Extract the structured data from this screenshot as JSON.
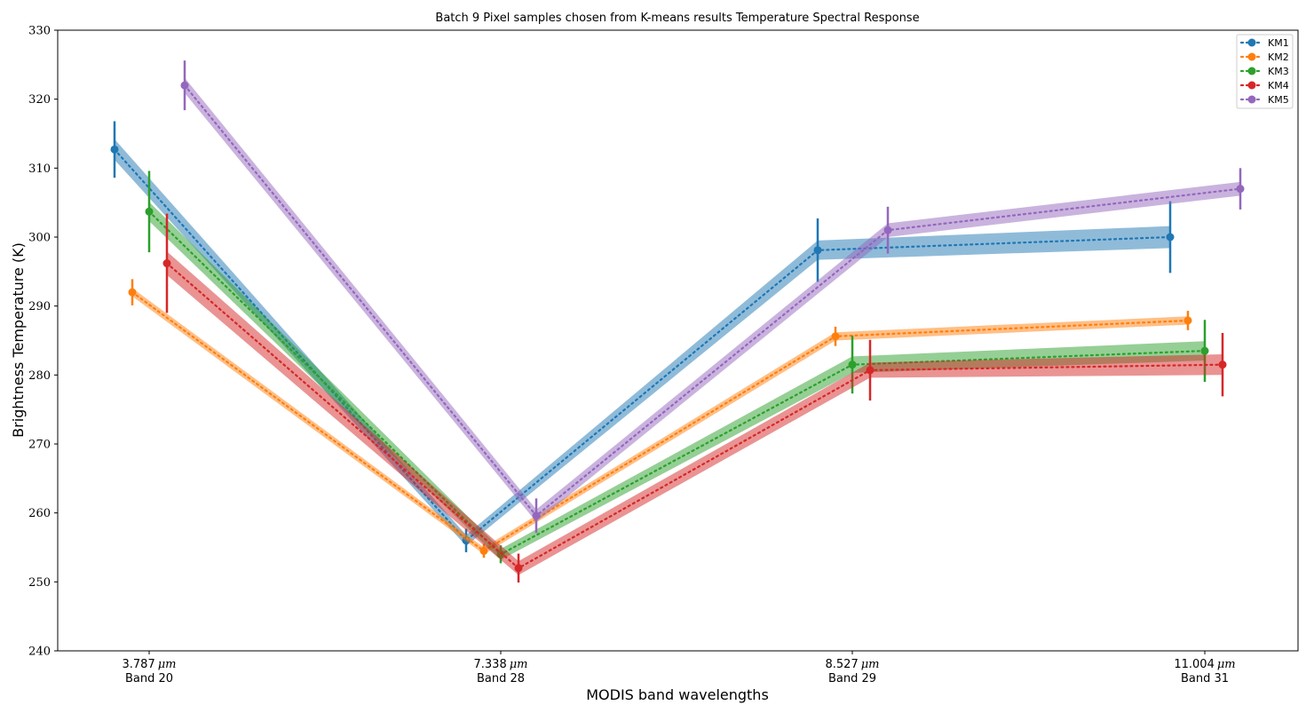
{
  "chart_data": {
    "type": "line",
    "title": "Batch 9 Pixel samples chosen from K-means results Temperature Spectral Response",
    "xlabel": "MODIS band wavelengths",
    "ylabel": "Brightness Temperature (K)",
    "ylim": [
      240,
      330
    ],
    "yticks": [
      240,
      250,
      260,
      270,
      280,
      290,
      300,
      310,
      320,
      330
    ],
    "grid": false,
    "legend_position": "top-right",
    "categories": [
      {
        "value": "3.787",
        "unit": "μm",
        "band": "Band 20"
      },
      {
        "value": "7.338",
        "unit": "μm",
        "band": "Band 28"
      },
      {
        "value": "8.527",
        "unit": "μm",
        "band": "Band 29"
      },
      {
        "value": "11.004",
        "unit": "μm",
        "band": "Band 31"
      }
    ],
    "series": [
      {
        "name": "KM1",
        "color": "#1f77b4",
        "values": [
          312.7,
          256.0,
          298.1,
          300.0
        ],
        "err": [
          4.1,
          1.7,
          4.6,
          5.2
        ],
        "band_half_width": [
          1.5,
          0.8,
          1.4,
          1.6
        ]
      },
      {
        "name": "KM2",
        "color": "#ff7f0e",
        "values": [
          292.0,
          254.5,
          285.6,
          287.9
        ],
        "err": [
          1.9,
          1.0,
          1.4,
          1.4
        ],
        "band_half_width": [
          0.6,
          0.5,
          0.6,
          0.6
        ]
      },
      {
        "name": "KM3",
        "color": "#2ca02c",
        "values": [
          303.7,
          254.0,
          281.5,
          283.5
        ],
        "err": [
          5.9,
          1.3,
          4.2,
          4.5
        ],
        "band_half_width": [
          1.4,
          0.8,
          1.2,
          1.4
        ]
      },
      {
        "name": "KM4",
        "color": "#d62728",
        "values": [
          296.2,
          252.0,
          280.7,
          281.5
        ],
        "err": [
          7.2,
          2.1,
          4.4,
          4.6
        ],
        "band_half_width": [
          1.7,
          1.0,
          1.1,
          1.5
        ]
      },
      {
        "name": "KM5",
        "color": "#9467bd",
        "values": [
          322.0,
          259.6,
          301.0,
          307.0
        ],
        "err": [
          3.6,
          2.5,
          3.4,
          3.0
        ],
        "band_half_width": [
          1.1,
          0.9,
          1.0,
          1.0
        ]
      }
    ]
  }
}
